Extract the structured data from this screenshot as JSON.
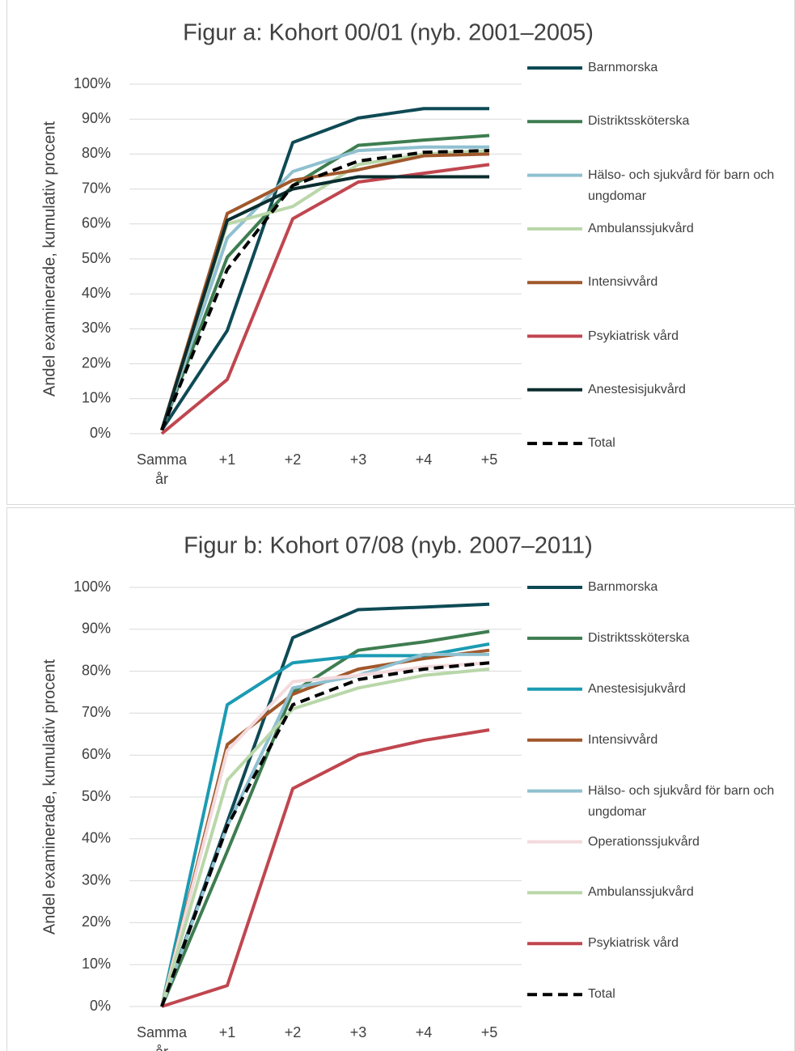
{
  "chart_data": [
    {
      "type": "line",
      "title": "Figur a: Kohort 00/01 (nyb. 2001–2005)",
      "y_label": "Andel examinerade, kumulativ procent",
      "categories": [
        "Samma år",
        "+1",
        "+2",
        "+3",
        "+4",
        "+5"
      ],
      "ylim": [
        0,
        100
      ],
      "yticks": [
        {
          "value": 0,
          "label": "0%"
        },
        {
          "value": 10,
          "label": "10%"
        },
        {
          "value": 20,
          "label": "20%"
        },
        {
          "value": 30,
          "label": "30%"
        },
        {
          "value": 40,
          "label": "40%"
        },
        {
          "value": 50,
          "label": "50%"
        },
        {
          "value": 60,
          "label": "60%"
        },
        {
          "value": 70,
          "label": "70%"
        },
        {
          "value": 80,
          "label": "80%"
        },
        {
          "value": 90,
          "label": "90%"
        },
        {
          "value": 100,
          "label": "100%"
        }
      ],
      "grid": true,
      "legend": "right",
      "series": [
        {
          "name": "Barnmorska",
          "color": "#0e4a55",
          "values": [
            1,
            29.5,
            83.3,
            90.3,
            93,
            93
          ]
        },
        {
          "name": "Distriktssköterska",
          "color": "#3e7d50",
          "values": [
            1,
            50.5,
            71,
            82.5,
            84,
            85.3
          ]
        },
        {
          "name": "Hälso- och sjukvård för barn och ungdomar",
          "color": "#8fc0d0",
          "values": [
            1,
            56,
            75,
            81,
            82,
            82
          ]
        },
        {
          "name": "Ambulanssjukvård",
          "color": "#b9d7a9",
          "values": [
            1,
            60,
            65,
            77,
            80,
            81
          ]
        },
        {
          "name": "Intensivvård",
          "color": "#a0582b",
          "values": [
            1,
            63,
            72.5,
            75.5,
            79.5,
            80
          ]
        },
        {
          "name": "Psykiatrisk vård",
          "color": "#c0464f",
          "values": [
            0,
            15.5,
            61.5,
            72,
            74.5,
            77
          ]
        },
        {
          "name": "Anestesisjukvård",
          "color": "#0b2d2f",
          "values": [
            1,
            61,
            70,
            73.5,
            73.5,
            73.5
          ]
        },
        {
          "name": "Total",
          "color": "#000000",
          "dashed": true,
          "values": [
            1,
            47,
            71,
            78,
            80.5,
            81
          ]
        }
      ]
    },
    {
      "type": "line",
      "title": "Figur b: Kohort 07/08 (nyb. 2007–2011)",
      "y_label": "Andel examinerade, kumulativ procent",
      "categories": [
        "Samma år",
        "+1",
        "+2",
        "+3",
        "+4",
        "+5"
      ],
      "ylim": [
        0,
        100
      ],
      "yticks": [
        {
          "value": 0,
          "label": "0%"
        },
        {
          "value": 10,
          "label": "10%"
        },
        {
          "value": 20,
          "label": "20%"
        },
        {
          "value": 30,
          "label": "30%"
        },
        {
          "value": 40,
          "label": "40%"
        },
        {
          "value": 50,
          "label": "50%"
        },
        {
          "value": 60,
          "label": "60%"
        },
        {
          "value": 70,
          "label": "70%"
        },
        {
          "value": 80,
          "label": "80%"
        },
        {
          "value": 90,
          "label": "90%"
        },
        {
          "value": 100,
          "label": "100%"
        }
      ],
      "grid": true,
      "legend": "right",
      "series": [
        {
          "name": "Barnmorska",
          "color": "#0e4a55",
          "values": [
            0,
            44,
            88,
            94.7,
            95.3,
            96
          ]
        },
        {
          "name": "Distriktssköterska",
          "color": "#3e7d50",
          "values": [
            0,
            37,
            75,
            85,
            87,
            89.5
          ]
        },
        {
          "name": "Anestesisjukvård",
          "color": "#1b9bb3",
          "values": [
            0,
            72,
            82,
            83.7,
            83.7,
            86.5
          ]
        },
        {
          "name": "Intensivvård",
          "color": "#a0582b",
          "values": [
            0,
            62.5,
            74.5,
            80.5,
            83,
            85
          ]
        },
        {
          "name": "Hälso- och sjukvård för barn och ungdomar",
          "color": "#8fc0d0",
          "values": [
            0,
            43,
            76,
            79,
            84,
            84
          ]
        },
        {
          "name": "Operationssjukvård",
          "color": "#f3dadd",
          "values": [
            0,
            61,
            77.5,
            79,
            81,
            82
          ]
        },
        {
          "name": "Ambulanssjukvård",
          "color": "#b9d7a9",
          "values": [
            0,
            54,
            71,
            76,
            79,
            80.5
          ]
        },
        {
          "name": "Psykiatrisk vård",
          "color": "#c0464f",
          "values": [
            0,
            5,
            52,
            60,
            63.5,
            66
          ]
        },
        {
          "name": "Total",
          "color": "#000000",
          "dashed": true,
          "values": [
            0,
            43,
            72,
            78,
            80.5,
            82
          ]
        }
      ]
    }
  ]
}
